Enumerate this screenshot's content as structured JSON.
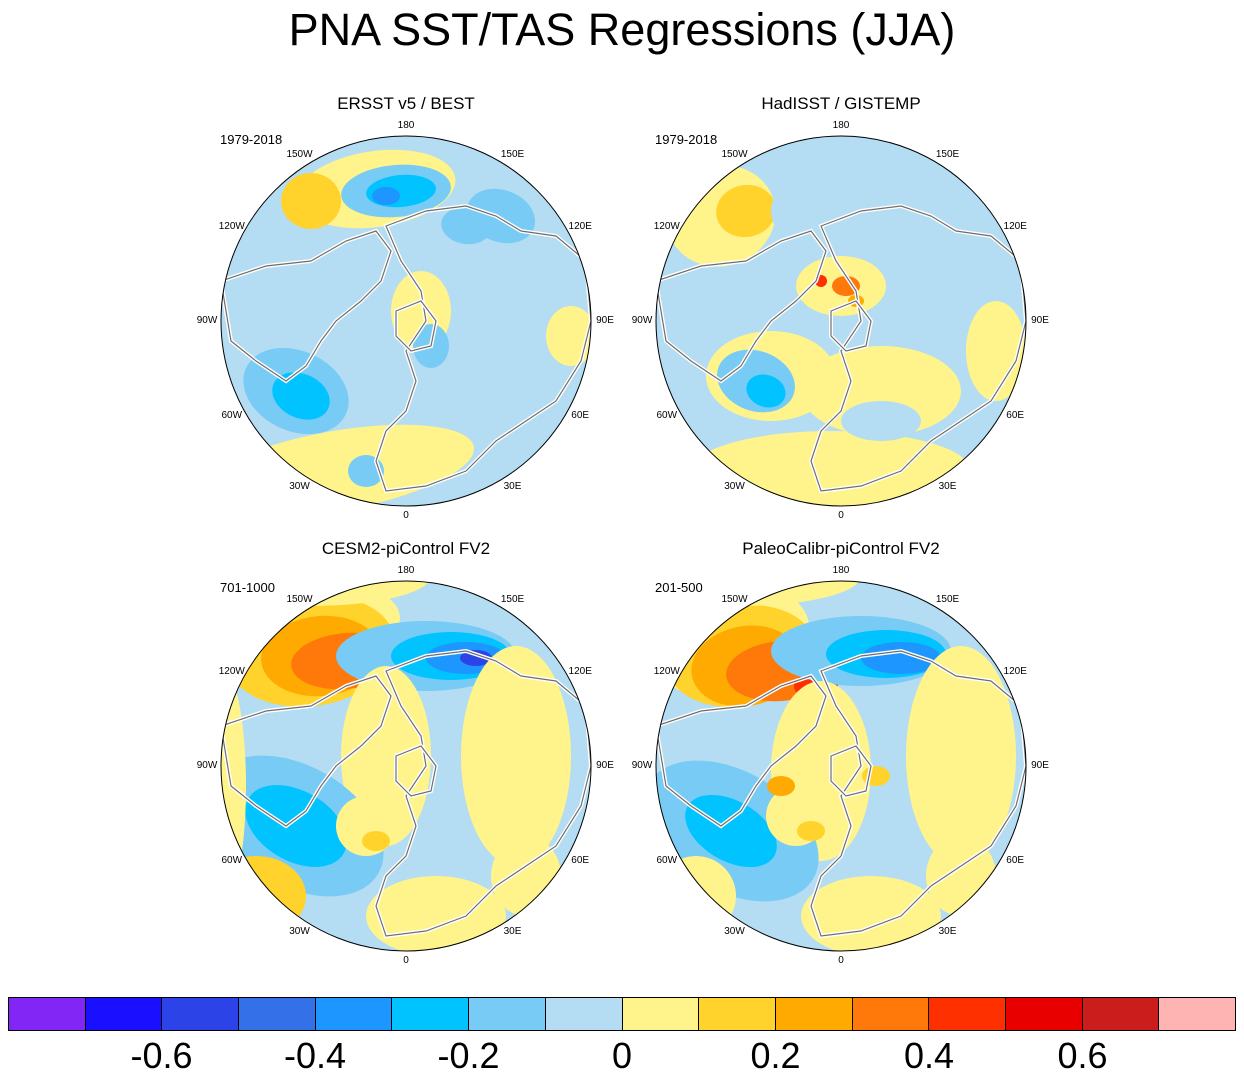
{
  "title": "PNA SST/TAS Regressions (JJA)",
  "lon_labels": [
    "180",
    "150E",
    "120E",
    "90E",
    "60E",
    "30E",
    "0",
    "30W",
    "60W",
    "90W",
    "120W",
    "150W"
  ],
  "palette": {
    "ocean_blue": "#b4dcf2",
    "land_yellow": "#fff48c",
    "coast": "#6e6e6e"
  },
  "panels": [
    {
      "title": "ERSST v5 / BEST",
      "period": "1979-2018"
    },
    {
      "title": "HadISST / GISTEMP",
      "period": "1979-2018"
    },
    {
      "title": "CESM2-piControl FV2",
      "period": "701-1000"
    },
    {
      "title": "PaleoCalibr-piControl FV2",
      "period": "201-500"
    }
  ],
  "colorbar": {
    "colors": [
      "#8226f5",
      "#1a0fff",
      "#2c43e8",
      "#3470e8",
      "#1e96ff",
      "#00c3ff",
      "#78cbf5",
      "#b4dcf2",
      "#fff48c",
      "#ffd32c",
      "#ffaa00",
      "#ff780a",
      "#ff3000",
      "#e80000",
      "#cc1d1d",
      "#ffb4b4"
    ],
    "tick_labels": [
      "-0.6",
      "-0.4",
      "-0.2",
      "0",
      "0.2",
      "0.4",
      "0.6"
    ]
  }
}
